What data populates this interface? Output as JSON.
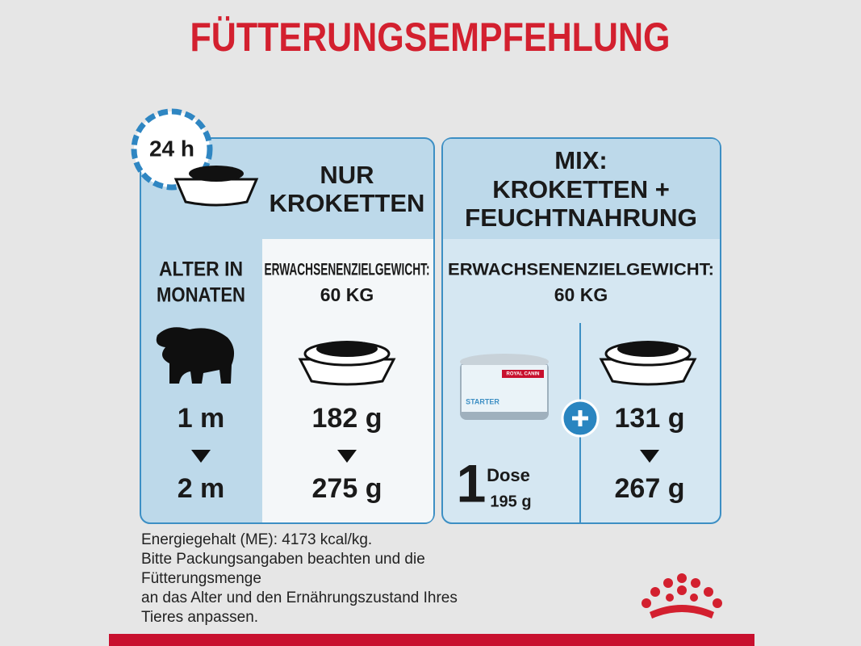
{
  "title": "FÜTTERUNGSEMPFEHLUNG",
  "clock": "24 h",
  "dry_panel": {
    "heading": [
      "NUR",
      "KROKETTEN"
    ],
    "age_header": [
      "ALTER IN",
      "MONATEN"
    ],
    "ages": [
      "1 m",
      "2 m"
    ],
    "weight_header": [
      "ERWACHSENENZIELGEWICHT:",
      "60 KG"
    ],
    "amounts": [
      "182 g",
      "275 g"
    ]
  },
  "mix_panel": {
    "heading": [
      "MIX:",
      "KROKETTEN +",
      "FEUCHTNAHRUNG"
    ],
    "weight_header": [
      "ERWACHSENENZIELGEWICHT:",
      "60 KG"
    ],
    "can_label": [
      "ROYAL CANIN",
      "STARTER"
    ],
    "can_count": "1",
    "can_unit": "Dose",
    "can_weight": "195 g",
    "amounts": [
      "131 g",
      "267 g"
    ]
  },
  "note": [
    "Energiegehalt (ME): 4173 kcal/kg.",
    "Bitte Packungsangaben beachten und die",
    "Fütterungsmenge",
    "an das Alter und den Ernährungszustand Ihres",
    "Tieres anpassen."
  ]
}
